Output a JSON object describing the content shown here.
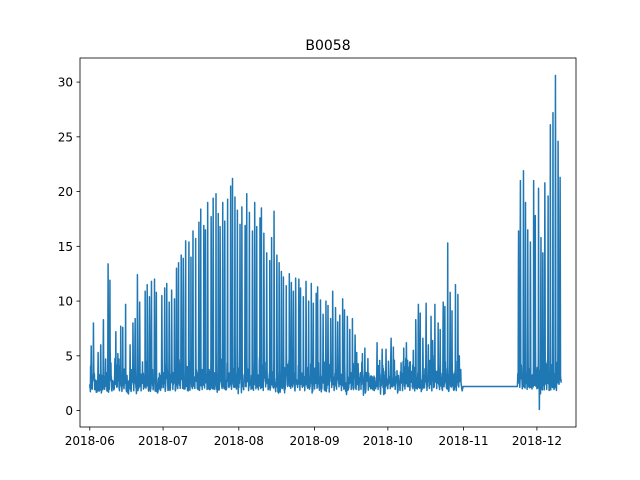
{
  "chart_data": {
    "type": "line",
    "title": "B0058",
    "xlabel": "",
    "ylabel": "",
    "grid": false,
    "line_color": "#1f77b4",
    "x_range": [
      "2018-05-28",
      "2018-12-17"
    ],
    "ylim": [
      -1.5,
      32.2
    ],
    "x_ticks": [
      {
        "date": "2018-06-01",
        "label": "2018-06"
      },
      {
        "date": "2018-07-01",
        "label": "2018-07"
      },
      {
        "date": "2018-08-01",
        "label": "2018-08"
      },
      {
        "date": "2018-09-01",
        "label": "2018-09"
      },
      {
        "date": "2018-10-01",
        "label": "2018-10"
      },
      {
        "date": "2018-11-01",
        "label": "2018-11"
      },
      {
        "date": "2018-12-01",
        "label": "2018-12"
      }
    ],
    "y_ticks": [
      {
        "value": 0,
        "label": "0"
      },
      {
        "value": 5,
        "label": "5"
      },
      {
        "value": 10,
        "label": "10"
      },
      {
        "value": 15,
        "label": "15"
      },
      {
        "value": 20,
        "label": "20"
      },
      {
        "value": 25,
        "label": "25"
      },
      {
        "value": 30,
        "label": "30"
      }
    ],
    "series": [
      {
        "daily_peaks": [
          [
            "2018-06-01",
            5.9
          ],
          [
            "2018-06-02",
            8.0
          ],
          [
            "2018-06-03",
            2.5
          ],
          [
            "2018-06-04",
            5.3
          ],
          [
            "2018-06-05",
            6.0
          ],
          [
            "2018-06-06",
            8.3
          ],
          [
            "2018-06-07",
            2.8
          ],
          [
            "2018-06-08",
            13.4
          ],
          [
            "2018-06-09",
            11.9
          ],
          [
            "2018-06-10",
            2.6
          ],
          [
            "2018-06-11",
            7.2
          ],
          [
            "2018-06-12",
            5.2
          ],
          [
            "2018-06-13",
            7.7
          ],
          [
            "2018-06-14",
            7.6
          ],
          [
            "2018-06-15",
            9.7
          ],
          [
            "2018-06-16",
            3.2
          ],
          [
            "2018-06-17",
            6.0
          ],
          [
            "2018-06-18",
            8.0
          ],
          [
            "2018-06-19",
            8.4
          ],
          [
            "2018-06-20",
            12.4
          ],
          [
            "2018-06-21",
            9.9
          ],
          [
            "2018-06-22",
            3.1
          ],
          [
            "2018-06-23",
            10.9
          ],
          [
            "2018-06-24",
            11.5
          ],
          [
            "2018-06-25",
            10.4
          ],
          [
            "2018-06-26",
            11.8
          ],
          [
            "2018-06-27",
            12.0
          ],
          [
            "2018-06-28",
            10.8
          ],
          [
            "2018-06-29",
            3.0
          ],
          [
            "2018-06-30",
            10.5
          ],
          [
            "2018-07-01",
            11.2
          ],
          [
            "2018-07-02",
            11.6
          ],
          [
            "2018-07-03",
            9.9
          ],
          [
            "2018-07-04",
            11.0
          ],
          [
            "2018-07-05",
            10.2
          ],
          [
            "2018-07-06",
            13.0
          ],
          [
            "2018-07-07",
            13.5
          ],
          [
            "2018-07-08",
            14.2
          ],
          [
            "2018-07-09",
            13.9
          ],
          [
            "2018-07-10",
            15.5
          ],
          [
            "2018-07-11",
            15.4
          ],
          [
            "2018-07-12",
            14.0
          ],
          [
            "2018-07-13",
            16.4
          ],
          [
            "2018-07-14",
            15.7
          ],
          [
            "2018-07-15",
            17.2
          ],
          [
            "2018-07-16",
            18.4
          ],
          [
            "2018-07-17",
            16.9
          ],
          [
            "2018-07-18",
            16.5
          ],
          [
            "2018-07-19",
            19.0
          ],
          [
            "2018-07-20",
            17.7
          ],
          [
            "2018-07-21",
            19.4
          ],
          [
            "2018-07-22",
            19.8
          ],
          [
            "2018-07-23",
            18.0
          ],
          [
            "2018-07-24",
            16.8
          ],
          [
            "2018-07-25",
            19.0
          ],
          [
            "2018-07-26",
            17.3
          ],
          [
            "2018-07-27",
            19.3
          ],
          [
            "2018-07-28",
            20.5
          ],
          [
            "2018-07-29",
            21.2
          ],
          [
            "2018-07-30",
            19.5
          ],
          [
            "2018-07-31",
            18.3
          ],
          [
            "2018-08-01",
            17.0
          ],
          [
            "2018-08-02",
            18.6
          ],
          [
            "2018-08-03",
            16.9
          ],
          [
            "2018-08-04",
            19.8
          ],
          [
            "2018-08-05",
            18.1
          ],
          [
            "2018-08-06",
            16.4
          ],
          [
            "2018-08-07",
            19.0
          ],
          [
            "2018-08-08",
            16.8
          ],
          [
            "2018-08-09",
            17.6
          ],
          [
            "2018-08-10",
            18.5
          ],
          [
            "2018-08-11",
            16.2
          ],
          [
            "2018-08-12",
            14.4
          ],
          [
            "2018-08-13",
            13.7
          ],
          [
            "2018-08-14",
            15.8
          ],
          [
            "2018-08-15",
            18.2
          ],
          [
            "2018-08-16",
            14.2
          ],
          [
            "2018-08-17",
            13.5
          ],
          [
            "2018-08-18",
            12.7
          ],
          [
            "2018-08-19",
            12.2
          ],
          [
            "2018-08-20",
            11.4
          ],
          [
            "2018-08-21",
            12.5
          ],
          [
            "2018-08-22",
            11.7
          ],
          [
            "2018-08-23",
            10.9
          ],
          [
            "2018-08-24",
            12.1
          ],
          [
            "2018-08-25",
            12.0
          ],
          [
            "2018-08-26",
            11.2
          ],
          [
            "2018-08-27",
            10.4
          ],
          [
            "2018-08-28",
            11.8
          ],
          [
            "2018-08-29",
            10.0
          ],
          [
            "2018-08-30",
            11.6
          ],
          [
            "2018-08-31",
            9.8
          ],
          [
            "2018-09-01",
            10.7
          ],
          [
            "2018-09-02",
            11.3
          ],
          [
            "2018-09-03",
            10.1
          ],
          [
            "2018-09-04",
            8.8
          ],
          [
            "2018-09-05",
            10.0
          ],
          [
            "2018-09-06",
            9.6
          ],
          [
            "2018-09-07",
            8.4
          ],
          [
            "2018-09-08",
            10.9
          ],
          [
            "2018-09-09",
            9.4
          ],
          [
            "2018-09-10",
            8.1
          ],
          [
            "2018-09-11",
            8.7
          ],
          [
            "2018-09-12",
            10.2
          ],
          [
            "2018-09-13",
            9.2
          ],
          [
            "2018-09-14",
            8.6
          ],
          [
            "2018-09-15",
            7.4
          ],
          [
            "2018-09-16",
            8.4
          ],
          [
            "2018-09-17",
            6.9
          ],
          [
            "2018-09-18",
            5.3
          ],
          [
            "2018-09-19",
            3.4
          ],
          [
            "2018-09-20",
            5.2
          ],
          [
            "2018-09-21",
            5.7
          ],
          [
            "2018-09-22",
            2.9
          ],
          [
            "2018-09-23",
            2.7
          ],
          [
            "2018-09-24",
            2.8
          ],
          [
            "2018-09-25",
            3.0
          ],
          [
            "2018-09-26",
            6.2
          ],
          [
            "2018-09-27",
            4.1
          ],
          [
            "2018-09-28",
            5.6
          ],
          [
            "2018-09-29",
            3.2
          ],
          [
            "2018-09-30",
            5.6
          ],
          [
            "2018-10-01",
            3.1
          ],
          [
            "2018-10-02",
            6.6
          ],
          [
            "2018-10-03",
            5.8
          ],
          [
            "2018-10-04",
            3.0
          ],
          [
            "2018-10-05",
            3.2
          ],
          [
            "2018-10-06",
            2.7
          ],
          [
            "2018-10-07",
            5.7
          ],
          [
            "2018-10-08",
            6.2
          ],
          [
            "2018-10-09",
            4.0
          ],
          [
            "2018-10-10",
            3.0
          ],
          [
            "2018-10-11",
            5.5
          ],
          [
            "2018-10-12",
            8.3
          ],
          [
            "2018-10-13",
            9.7
          ],
          [
            "2018-10-14",
            8.9
          ],
          [
            "2018-10-15",
            6.6
          ],
          [
            "2018-10-16",
            9.8
          ],
          [
            "2018-10-17",
            6.0
          ],
          [
            "2018-10-18",
            8.6
          ],
          [
            "2018-10-19",
            6.4
          ],
          [
            "2018-10-20",
            9.7
          ],
          [
            "2018-10-21",
            8.0
          ],
          [
            "2018-10-22",
            7.4
          ],
          [
            "2018-10-23",
            9.9
          ],
          [
            "2018-10-24",
            9.5
          ],
          [
            "2018-10-25",
            15.3
          ],
          [
            "2018-10-26",
            10.8
          ],
          [
            "2018-10-27",
            9.1
          ],
          [
            "2018-10-28",
            11.5
          ],
          [
            "2018-10-29",
            10.6
          ],
          [
            "2018-10-30",
            5.0
          ],
          [
            "2018-10-31",
            3.0
          ],
          [
            "2018-11-23",
            16.4
          ],
          [
            "2018-11-24",
            21.0
          ],
          [
            "2018-11-25",
            21.9
          ],
          [
            "2018-11-26",
            19.0
          ],
          [
            "2018-11-27",
            16.5
          ],
          [
            "2018-11-28",
            15.4
          ],
          [
            "2018-11-29",
            21.0
          ],
          [
            "2018-11-30",
            17.8
          ],
          [
            "2018-12-01",
            20.3
          ],
          [
            "2018-12-02",
            15.8
          ],
          [
            "2018-12-03",
            14.4
          ],
          [
            "2018-12-04",
            20.8
          ],
          [
            "2018-12-05",
            19.6
          ],
          [
            "2018-12-06",
            26.1
          ],
          [
            "2018-12-07",
            27.2
          ],
          [
            "2018-12-08",
            30.6
          ],
          [
            "2018-12-09",
            24.6
          ],
          [
            "2018-12-10",
            21.3
          ]
        ],
        "daily_troughs": [
          [
            "2018-06-01",
            2.4
          ],
          [
            "2018-06-08",
            1.8
          ],
          [
            "2018-06-15",
            2.0
          ],
          [
            "2018-06-22",
            1.8
          ],
          [
            "2018-06-29",
            2.0
          ],
          [
            "2018-07-06",
            1.8
          ],
          [
            "2018-07-13",
            2.0
          ],
          [
            "2018-07-20",
            1.9
          ],
          [
            "2018-07-27",
            2.0
          ],
          [
            "2018-08-03",
            1.9
          ],
          [
            "2018-08-10",
            2.0
          ],
          [
            "2018-08-17",
            1.7
          ],
          [
            "2018-08-24",
            1.8
          ],
          [
            "2018-08-31",
            1.6
          ],
          [
            "2018-09-07",
            1.7
          ],
          [
            "2018-09-14",
            1.8
          ],
          [
            "2018-09-21",
            1.4
          ],
          [
            "2018-09-28",
            1.5
          ],
          [
            "2018-10-05",
            1.6
          ],
          [
            "2018-10-12",
            1.8
          ],
          [
            "2018-10-19",
            1.8
          ],
          [
            "2018-10-26",
            1.9
          ],
          [
            "2018-10-31",
            2.0
          ],
          [
            "2018-11-23",
            2.2
          ],
          [
            "2018-11-30",
            2.3
          ],
          [
            "2018-12-02",
            0.0
          ],
          [
            "2018-12-10",
            2.4
          ]
        ]
      }
    ]
  }
}
